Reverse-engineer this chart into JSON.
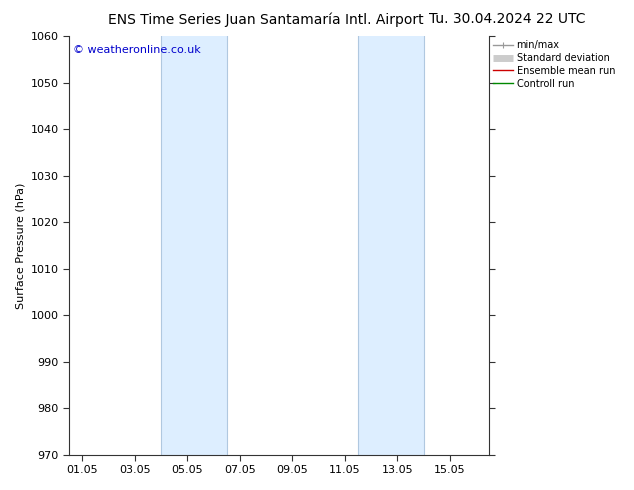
{
  "title_left": "ENS Time Series Juan Santamaría Intl. Airport",
  "title_right": "Tu. 30.04.2024 22 UTC",
  "ylabel": "Surface Pressure (hPa)",
  "ylim": [
    970,
    1060
  ],
  "yticks": [
    970,
    980,
    990,
    1000,
    1010,
    1020,
    1030,
    1040,
    1050,
    1060
  ],
  "xtick_labels": [
    "01.05",
    "03.05",
    "05.05",
    "07.05",
    "09.05",
    "11.05",
    "13.05",
    "15.05"
  ],
  "xtick_positions": [
    0,
    2,
    4,
    6,
    8,
    10,
    12,
    14
  ],
  "xlim": [
    -0.5,
    15.5
  ],
  "shaded_bands": [
    {
      "x_start": 3.0,
      "x_end": 5.5,
      "color": "#ddeeff",
      "edge_color": "#b0c8e0"
    },
    {
      "x_start": 10.5,
      "x_end": 13.0,
      "color": "#ddeeff",
      "edge_color": "#b0c8e0"
    }
  ],
  "copyright_text": "© weatheronline.co.uk",
  "copyright_color": "#0000cc",
  "background_color": "#ffffff",
  "plot_bg_color": "#ffffff",
  "spine_color": "#333333",
  "tick_color": "#333333",
  "legend_items": [
    {
      "label": "min/max",
      "color": "#999999",
      "lw": 1.0
    },
    {
      "label": "Standard deviation",
      "color": "#cccccc",
      "lw": 5
    },
    {
      "label": "Ensemble mean run",
      "color": "#cc0000",
      "lw": 1.0
    },
    {
      "label": "Controll run",
      "color": "#008800",
      "lw": 1.0
    }
  ],
  "title_fontsize": 10,
  "ylabel_fontsize": 8,
  "tick_fontsize": 8,
  "legend_fontsize": 7,
  "copyright_fontsize": 8
}
